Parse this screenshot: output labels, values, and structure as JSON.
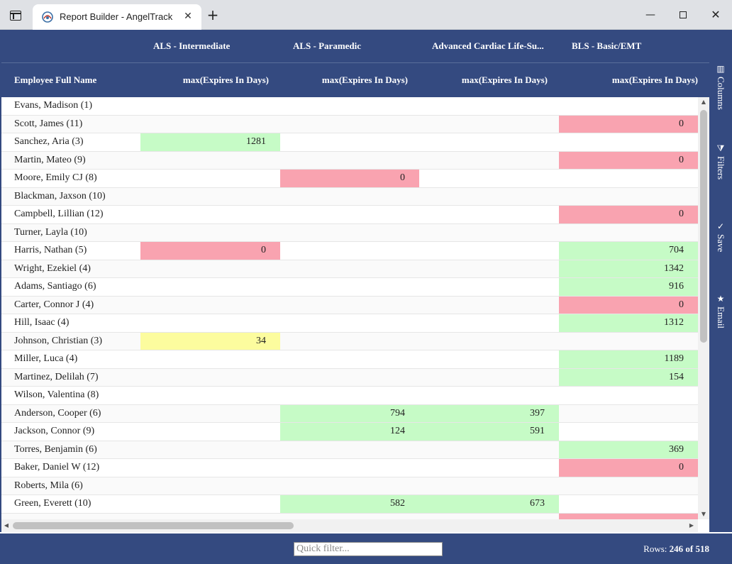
{
  "browser": {
    "tab_title": "Report Builder - AngelTrack",
    "close_glyph": "✕",
    "new_tab_glyph": "+",
    "minimize_glyph": "—",
    "window_close_glyph": "✕"
  },
  "grid": {
    "group_headers": [
      "",
      "ALS - Intermediate",
      "ALS - Paramedic",
      "Advanced Cardiac Life-Su...",
      "BLS - Basic/EMT"
    ],
    "column_headers": [
      "Employee Full Name",
      "max(Expires In Days)",
      "max(Expires In Days)",
      "max(Expires In Days)",
      "max(Expires In Days)"
    ],
    "rows": [
      {
        "name": "Evans, Madison (1)",
        "cells": [
          {
            "v": "",
            "s": ""
          },
          {
            "v": "",
            "s": ""
          },
          {
            "v": "",
            "s": ""
          },
          {
            "v": "",
            "s": ""
          }
        ]
      },
      {
        "name": "Scott, James (11)",
        "cells": [
          {
            "v": "",
            "s": ""
          },
          {
            "v": "",
            "s": ""
          },
          {
            "v": "",
            "s": ""
          },
          {
            "v": "0",
            "s": "red"
          }
        ]
      },
      {
        "name": "Sanchez, Aria (3)",
        "cells": [
          {
            "v": "1281",
            "s": "green"
          },
          {
            "v": "",
            "s": ""
          },
          {
            "v": "",
            "s": ""
          },
          {
            "v": "",
            "s": ""
          }
        ]
      },
      {
        "name": "Martin, Mateo (9)",
        "cells": [
          {
            "v": "",
            "s": ""
          },
          {
            "v": "",
            "s": ""
          },
          {
            "v": "",
            "s": ""
          },
          {
            "v": "0",
            "s": "red"
          }
        ]
      },
      {
        "name": "Moore, Emily CJ (8)",
        "cells": [
          {
            "v": "",
            "s": ""
          },
          {
            "v": "0",
            "s": "red"
          },
          {
            "v": "",
            "s": ""
          },
          {
            "v": "",
            "s": ""
          }
        ]
      },
      {
        "name": "Blackman, Jaxson (10)",
        "cells": [
          {
            "v": "",
            "s": ""
          },
          {
            "v": "",
            "s": ""
          },
          {
            "v": "",
            "s": ""
          },
          {
            "v": "",
            "s": ""
          }
        ]
      },
      {
        "name": "Campbell, Lillian (12)",
        "cells": [
          {
            "v": "",
            "s": ""
          },
          {
            "v": "",
            "s": ""
          },
          {
            "v": "",
            "s": ""
          },
          {
            "v": "0",
            "s": "red"
          }
        ]
      },
      {
        "name": "Turner, Layla (10)",
        "cells": [
          {
            "v": "",
            "s": ""
          },
          {
            "v": "",
            "s": ""
          },
          {
            "v": "",
            "s": ""
          },
          {
            "v": "",
            "s": ""
          }
        ]
      },
      {
        "name": "Harris, Nathan (5)",
        "cells": [
          {
            "v": "0",
            "s": "red"
          },
          {
            "v": "",
            "s": ""
          },
          {
            "v": "",
            "s": ""
          },
          {
            "v": "704",
            "s": "green"
          }
        ]
      },
      {
        "name": "Wright, Ezekiel (4)",
        "cells": [
          {
            "v": "",
            "s": ""
          },
          {
            "v": "",
            "s": ""
          },
          {
            "v": "",
            "s": ""
          },
          {
            "v": "1342",
            "s": "green"
          }
        ]
      },
      {
        "name": "Adams, Santiago (6)",
        "cells": [
          {
            "v": "",
            "s": ""
          },
          {
            "v": "",
            "s": ""
          },
          {
            "v": "",
            "s": ""
          },
          {
            "v": "916",
            "s": "green"
          }
        ]
      },
      {
        "name": "Carter, Connor J (4)",
        "cells": [
          {
            "v": "",
            "s": ""
          },
          {
            "v": "",
            "s": ""
          },
          {
            "v": "",
            "s": ""
          },
          {
            "v": "0",
            "s": "red"
          }
        ]
      },
      {
        "name": "Hill, Isaac (4)",
        "cells": [
          {
            "v": "",
            "s": ""
          },
          {
            "v": "",
            "s": ""
          },
          {
            "v": "",
            "s": ""
          },
          {
            "v": "1312",
            "s": "green"
          }
        ]
      },
      {
        "name": "Johnson, Christian (3)",
        "cells": [
          {
            "v": "34",
            "s": "yellow"
          },
          {
            "v": "",
            "s": ""
          },
          {
            "v": "",
            "s": ""
          },
          {
            "v": "",
            "s": ""
          }
        ]
      },
      {
        "name": "Miller, Luca (4)",
        "cells": [
          {
            "v": "",
            "s": ""
          },
          {
            "v": "",
            "s": ""
          },
          {
            "v": "",
            "s": ""
          },
          {
            "v": "1189",
            "s": "green"
          }
        ]
      },
      {
        "name": "Martinez, Delilah (7)",
        "cells": [
          {
            "v": "",
            "s": ""
          },
          {
            "v": "",
            "s": ""
          },
          {
            "v": "",
            "s": ""
          },
          {
            "v": "154",
            "s": "green"
          }
        ]
      },
      {
        "name": "Wilson, Valentina (8)",
        "cells": [
          {
            "v": "",
            "s": ""
          },
          {
            "v": "",
            "s": ""
          },
          {
            "v": "",
            "s": ""
          },
          {
            "v": "",
            "s": ""
          }
        ]
      },
      {
        "name": "Anderson, Cooper (6)",
        "cells": [
          {
            "v": "",
            "s": ""
          },
          {
            "v": "794",
            "s": "green"
          },
          {
            "v": "397",
            "s": "green"
          },
          {
            "v": "",
            "s": ""
          }
        ]
      },
      {
        "name": "Jackson, Connor (9)",
        "cells": [
          {
            "v": "",
            "s": ""
          },
          {
            "v": "124",
            "s": "green"
          },
          {
            "v": "591",
            "s": "green"
          },
          {
            "v": "",
            "s": ""
          }
        ]
      },
      {
        "name": "Torres, Benjamin (6)",
        "cells": [
          {
            "v": "",
            "s": ""
          },
          {
            "v": "",
            "s": ""
          },
          {
            "v": "",
            "s": ""
          },
          {
            "v": "369",
            "s": "green"
          }
        ]
      },
      {
        "name": "Baker, Daniel W (12)",
        "cells": [
          {
            "v": "",
            "s": ""
          },
          {
            "v": "",
            "s": ""
          },
          {
            "v": "",
            "s": ""
          },
          {
            "v": "0",
            "s": "red"
          }
        ]
      },
      {
        "name": "Roberts, Mila (6)",
        "cells": [
          {
            "v": "",
            "s": ""
          },
          {
            "v": "",
            "s": ""
          },
          {
            "v": "",
            "s": ""
          },
          {
            "v": "",
            "s": ""
          }
        ]
      },
      {
        "name": "Green, Everett (10)",
        "cells": [
          {
            "v": "",
            "s": ""
          },
          {
            "v": "582",
            "s": "green"
          },
          {
            "v": "673",
            "s": "green"
          },
          {
            "v": "",
            "s": ""
          }
        ]
      },
      {
        "name": "",
        "cells": [
          {
            "v": "",
            "s": ""
          },
          {
            "v": "",
            "s": ""
          },
          {
            "v": "",
            "s": ""
          },
          {
            "v": "",
            "s": "red"
          }
        ]
      }
    ]
  },
  "sidebar": {
    "items": [
      {
        "icon": "columns-icon",
        "glyph": "▥",
        "label": "Columns"
      },
      {
        "icon": "filter-icon",
        "glyph": "⧩",
        "label": "Filters"
      },
      {
        "icon": "check-icon",
        "glyph": "✓",
        "label": "Save"
      },
      {
        "icon": "star-icon",
        "glyph": "★",
        "label": "Email"
      }
    ]
  },
  "footer": {
    "quick_filter_placeholder": "Quick filter...",
    "quick_filter_value": "",
    "rows_label": "Rows:",
    "rows_count": "246 of 518"
  },
  "colors": {
    "header_bg": "#344a80",
    "cell_green": "#c6fbc6",
    "cell_red": "#f9a3b0",
    "cell_yellow": "#fcfc9e"
  }
}
